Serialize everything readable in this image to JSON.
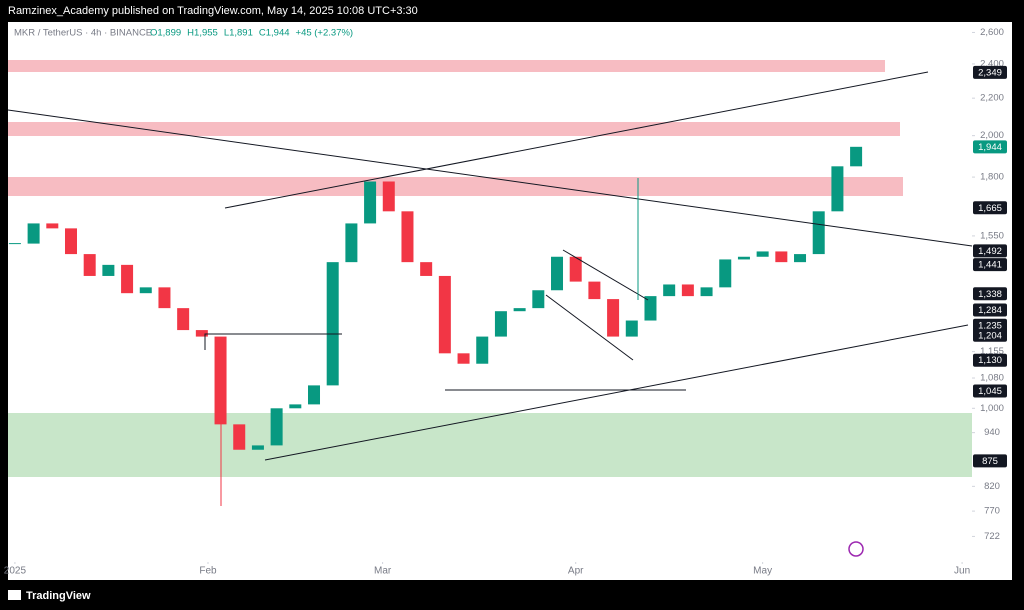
{
  "header": {
    "publisher": "Ramzinex_Academy published on TradingView.com, May 14, 2025 10:08 UTC+3:30"
  },
  "footer": {
    "brand": "TradingView"
  },
  "chart_data": {
    "type": "candlestick",
    "title": "MKR / TetherUS · 4h · BINANCE",
    "ohlc_legend": [
      "O1,899",
      "H1,955",
      "L1,891",
      "C1,944",
      "+45 (+2.37%)"
    ],
    "categories": [
      null,
      null,
      null,
      null,
      null,
      null,
      null,
      null,
      null,
      null,
      null,
      null,
      null,
      null,
      null,
      null,
      null,
      null,
      null,
      null,
      null,
      null,
      null,
      null,
      null,
      null,
      null,
      null,
      null,
      null,
      null,
      null,
      null,
      null,
      null,
      null,
      null,
      null,
      null,
      null,
      null,
      null,
      null,
      null,
      null,
      null
    ],
    "values": [
      1520,
      1600,
      1580,
      1480,
      1400,
      1440,
      1340,
      1360,
      1290,
      1220,
      1200,
      960,
      900,
      910,
      1000,
      1010,
      1060,
      1450,
      1600,
      1780,
      1650,
      1450,
      1400,
      1150,
      1120,
      1200,
      1280,
      1290,
      1350,
      1470,
      1380,
      1320,
      1200,
      1250,
      1330,
      1370,
      1330,
      1360,
      1460,
      1470,
      1490,
      1450,
      1480,
      1650,
      1850,
      1944
    ],
    "up_color": "#089981",
    "down_color": "#f23645",
    "xlim": [
      -0.37,
      51.2
    ],
    "xticks": [
      {
        "value": 0,
        "label": "2025"
      },
      {
        "value": 10.33,
        "label": "Feb"
      },
      {
        "value": 19.67,
        "label": "Mar"
      },
      {
        "value": 30,
        "label": "Apr"
      },
      {
        "value": 40,
        "label": "May"
      },
      {
        "value": 50.67,
        "label": "Jun"
      }
    ],
    "log_scale": true,
    "ylim": [
      680,
      2670
    ],
    "yticks": [
      {
        "value": 2600,
        "label": "2,600"
      },
      {
        "value": 2400,
        "label": "2,400"
      },
      {
        "value": 2200,
        "label": "2,200"
      },
      {
        "value": 2000,
        "label": "2,000"
      },
      {
        "value": 1800,
        "label": "1,800"
      },
      {
        "value": 1550,
        "label": "1,550"
      },
      {
        "value": 1155,
        "label": "1,155"
      },
      {
        "value": 1080,
        "label": "1,080"
      },
      {
        "value": 1000,
        "label": "1,000"
      },
      940,
      820,
      770,
      722
    ],
    "price_labels": [
      {
        "value": 2349,
        "label": "2,349",
        "color": "#131722"
      },
      {
        "value": 1944,
        "label": "1,944",
        "color": "#089981"
      },
      {
        "value": 1665,
        "label": "1,665",
        "color": "#131722"
      },
      {
        "value": 1492,
        "label": "1,492",
        "color": "#131722"
      },
      {
        "value": 1441,
        "label": "1,441",
        "color": "#131722"
      },
      {
        "value": 1338,
        "label": "1,338",
        "color": "#131722"
      },
      {
        "value": 1284,
        "label": "1,284",
        "color": "#131722"
      },
      {
        "value": 1235,
        "label": "1,235",
        "color": "#131722"
      },
      {
        "value": 1204,
        "label": "1,204",
        "color": "#131722"
      },
      {
        "value": 1130,
        "label": "1,130",
        "color": "#131722"
      },
      {
        "value": 1045,
        "label": "1,045",
        "color": "#131722"
      },
      {
        "value": 875,
        "label": "875",
        "color": "#131722"
      }
    ]
  }
}
